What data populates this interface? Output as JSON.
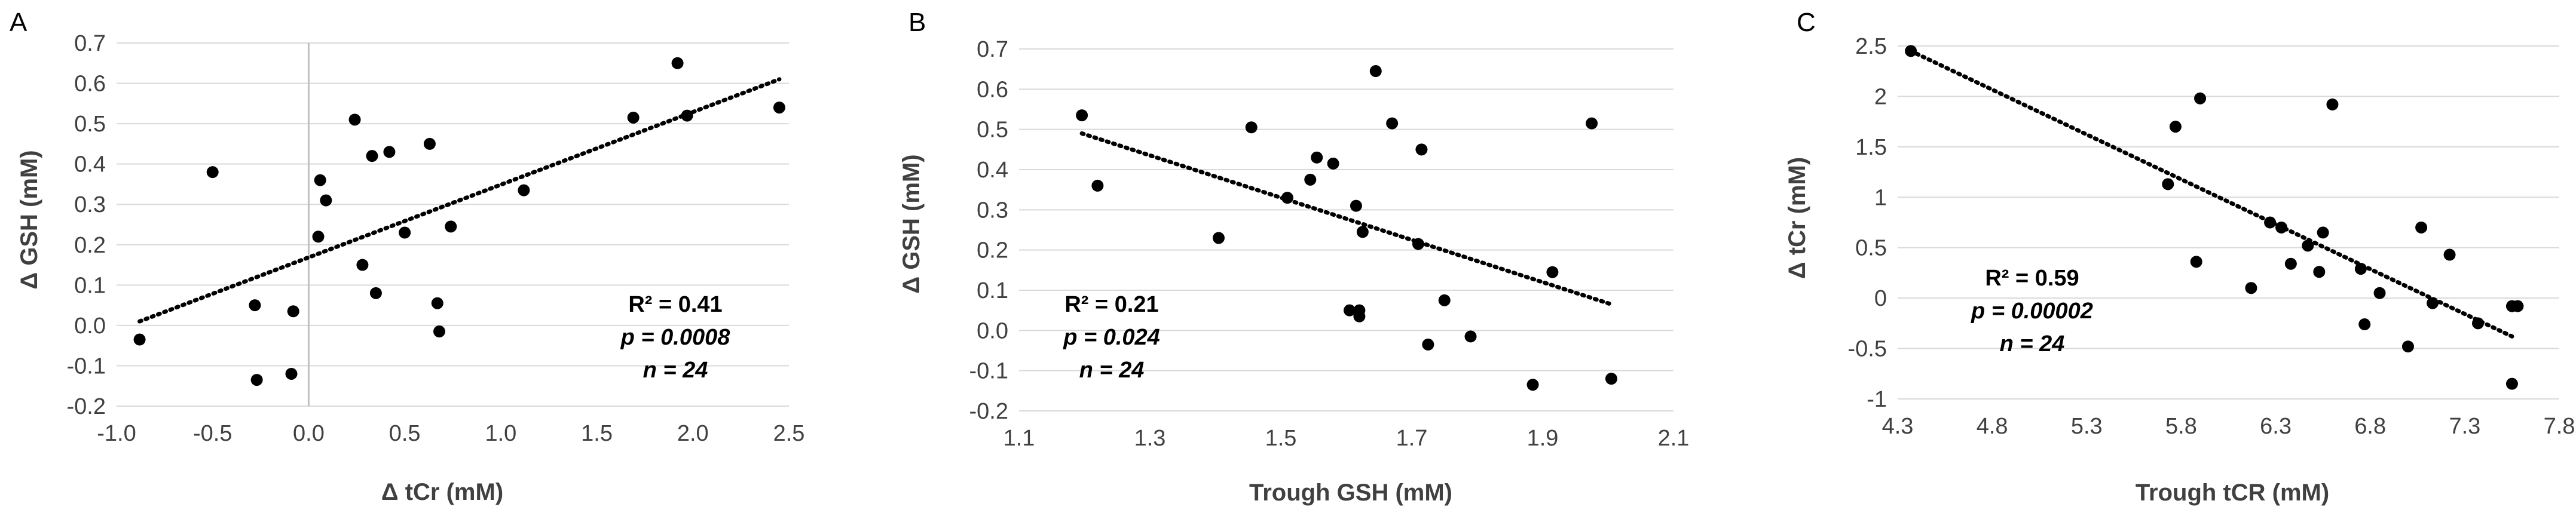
{
  "chart_data": [
    {
      "panel": "A",
      "type": "scatter",
      "xlabel": "Δ tCr (mM)",
      "ylabel": "Δ GSH (mM)",
      "xlim": [
        -1.0,
        2.5
      ],
      "ylim": [
        -0.2,
        0.7
      ],
      "xticks": [
        "-1.0",
        "-0.5",
        "0.0",
        "0.5",
        "1.0",
        "1.5",
        "2.0",
        "2.5"
      ],
      "yticks": [
        "-0.2",
        "-0.1",
        "0.0",
        "0.1",
        "0.2",
        "0.3",
        "0.4",
        "0.5",
        "0.6",
        "0.7"
      ],
      "x": [
        -0.88,
        -0.5,
        -0.28,
        -0.27,
        -0.09,
        -0.08,
        0.05,
        0.06,
        0.09,
        0.24,
        0.28,
        0.33,
        0.35,
        0.42,
        0.5,
        0.63,
        0.67,
        0.68,
        0.74,
        1.12,
        1.69,
        1.92,
        1.97,
        2.45
      ],
      "y": [
        -0.035,
        0.38,
        0.05,
        -0.135,
        -0.12,
        0.035,
        0.22,
        0.36,
        0.31,
        0.51,
        0.15,
        0.42,
        0.08,
        0.43,
        0.23,
        0.45,
        0.055,
        -0.015,
        0.245,
        0.335,
        0.515,
        0.65,
        0.52,
        0.54
      ],
      "trendline": {
        "x": [
          -0.88,
          2.45
        ],
        "y": [
          0.01,
          0.61
        ]
      },
      "stats": {
        "r2": "R² = 0.41",
        "p": "p = 0.0008",
        "n": "n = 24"
      },
      "grid": "horizontal"
    },
    {
      "panel": "B",
      "type": "scatter",
      "xlabel": "Trough GSH (mM)",
      "ylabel": "Δ GSH (mM)",
      "xlim": [
        1.1,
        2.1
      ],
      "ylim": [
        -0.2,
        0.7
      ],
      "xticks": [
        "1.1",
        "1.3",
        "1.5",
        "1.7",
        "1.9",
        "2.1"
      ],
      "yticks": [
        "-0.2",
        "-0.1",
        "0.0",
        "0.1",
        "0.2",
        "0.3",
        "0.4",
        "0.5",
        "0.6",
        "0.7"
      ],
      "x": [
        1.196,
        1.22,
        1.405,
        1.455,
        1.51,
        1.545,
        1.555,
        1.58,
        1.605,
        1.615,
        1.62,
        1.62,
        1.625,
        1.645,
        1.67,
        1.71,
        1.715,
        1.725,
        1.75,
        1.79,
        1.885,
        1.915,
        1.975,
        2.005
      ],
      "y": [
        0.535,
        0.36,
        0.23,
        0.505,
        0.33,
        0.375,
        0.43,
        0.415,
        0.05,
        0.31,
        0.035,
        0.05,
        0.245,
        0.645,
        0.515,
        0.215,
        0.45,
        -0.035,
        0.075,
        -0.015,
        -0.135,
        0.145,
        0.515,
        -0.12
      ],
      "trendline": {
        "x": [
          1.196,
          2.005
        ],
        "y": [
          0.49,
          0.065
        ]
      },
      "stats": {
        "r2": "R² = 0.21",
        "p": "p = 0.024",
        "n": "n = 24"
      },
      "grid": "horizontal"
    },
    {
      "panel": "C",
      "type": "scatter",
      "xlabel": "Trough tCR (mM)",
      "ylabel": "Δ tCr (mM)",
      "xlim": [
        4.3,
        7.8
      ],
      "ylim": [
        -1,
        2.5
      ],
      "xticks": [
        "4.3",
        "4.8",
        "5.3",
        "5.8",
        "6.3",
        "6.8",
        "7.3",
        "7.8"
      ],
      "yticks": [
        "-1",
        "-0.5",
        "0",
        "0.5",
        "1",
        "1.5",
        "2",
        "2.5"
      ],
      "x": [
        4.37,
        5.73,
        5.77,
        5.88,
        5.9,
        6.17,
        6.27,
        6.33,
        6.38,
        6.47,
        6.53,
        6.55,
        6.6,
        6.75,
        6.77,
        6.85,
        7.0,
        7.07,
        7.13,
        7.22,
        7.37,
        7.55,
        7.55,
        7.58
      ],
      "y": [
        2.45,
        1.13,
        1.7,
        0.36,
        1.98,
        0.1,
        0.75,
        0.7,
        0.34,
        0.52,
        0.26,
        0.65,
        1.92,
        0.29,
        -0.26,
        0.05,
        -0.48,
        0.7,
        -0.05,
        0.43,
        -0.25,
        -0.08,
        -0.85,
        -0.08
      ],
      "trendline": {
        "x": [
          4.37,
          7.55
        ],
        "y": [
          2.45,
          -0.38
        ]
      },
      "stats": {
        "r2": "R² = 0.59",
        "p": "p = 0.00002",
        "n": "n = 24"
      },
      "grid": "horizontal"
    }
  ]
}
